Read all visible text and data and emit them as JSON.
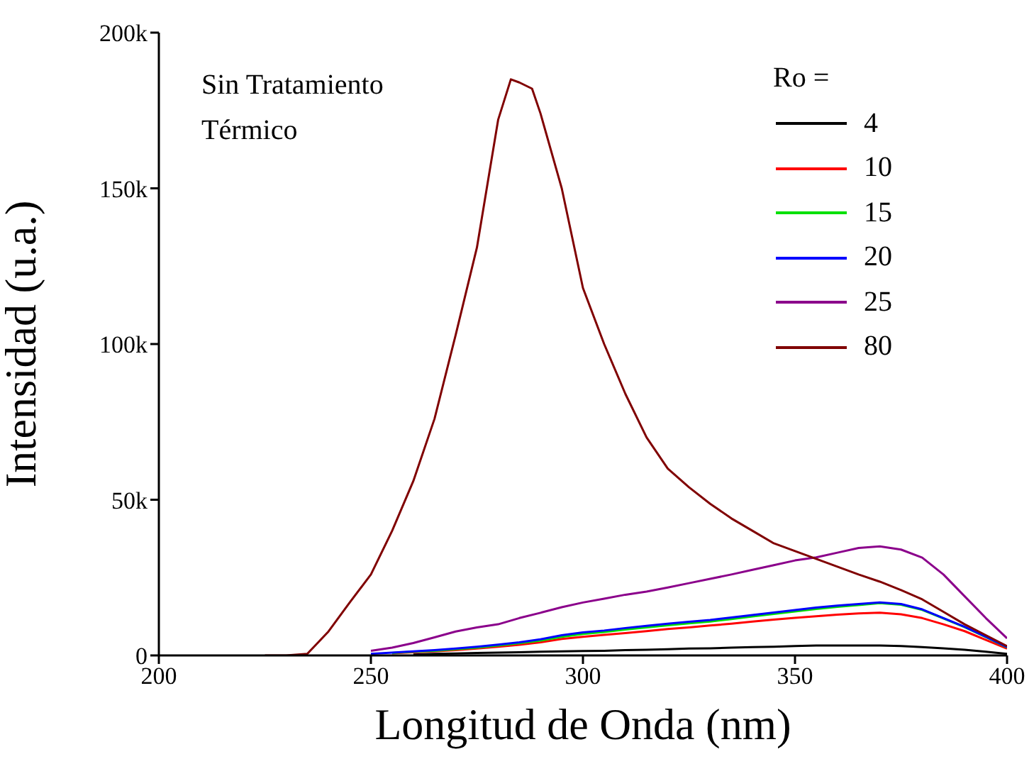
{
  "chart_data": {
    "type": "line",
    "xlabel": "Longitud de Onda (nm)",
    "ylabel": "Intensidad (u.a.)",
    "legend_title": "Ro =",
    "legend": "top right",
    "annotations": [
      "Sin Tratamiento Térmico"
    ],
    "xlim": [
      200,
      400
    ],
    "xticks": [
      200,
      250,
      300,
      350,
      400
    ],
    "ylim": [
      0,
      200000
    ],
    "yticks": [
      {
        "value": 0,
        "label": "0"
      },
      {
        "value": 50000,
        "label": "50k"
      },
      {
        "value": 100000,
        "label": "100k"
      },
      {
        "value": 150000,
        "label": "150k"
      },
      {
        "value": 200000,
        "label": "200k"
      }
    ],
    "x": [
      250,
      255,
      260,
      265,
      270,
      275,
      280,
      285,
      290,
      295,
      300,
      305,
      310,
      315,
      320,
      325,
      330,
      335,
      340,
      345,
      350,
      355,
      360,
      365,
      370,
      375,
      380,
      385,
      390,
      395,
      400
    ],
    "series": [
      {
        "name": "4",
        "color": "#000000",
        "values": [
          null,
          null,
          300,
          500,
          600,
          800,
          900,
          1000,
          1200,
          1300,
          1400,
          1500,
          1700,
          1800,
          2000,
          2200,
          2300,
          2500,
          2700,
          2800,
          3000,
          3200,
          3200,
          3200,
          3200,
          3000,
          2700,
          2300,
          1800,
          1200,
          500
        ]
      },
      {
        "name": "10",
        "color": "#ff0000",
        "values": [
          null,
          700,
          1000,
          1300,
          1700,
          2200,
          2800,
          3400,
          4200,
          5300,
          6000,
          6600,
          7200,
          7800,
          8500,
          9000,
          9600,
          10200,
          10900,
          11500,
          12100,
          12600,
          13100,
          13500,
          13700,
          13200,
          12000,
          10000,
          7800,
          5000,
          2200
        ]
      },
      {
        "name": "15",
        "color": "#00e000",
        "values": [
          null,
          800,
          1200,
          1500,
          2000,
          2500,
          3200,
          3900,
          4800,
          6000,
          6900,
          7500,
          8300,
          9000,
          9700,
          10300,
          10900,
          11700,
          12500,
          13300,
          14100,
          14900,
          15600,
          16200,
          16800,
          16300,
          14600,
          11900,
          9100,
          5900,
          2600
        ]
      },
      {
        "name": "20",
        "color": "#0000ff",
        "values": [
          500,
          900,
          1300,
          1700,
          2200,
          2800,
          3500,
          4200,
          5200,
          6500,
          7400,
          8000,
          8800,
          9500,
          10200,
          10800,
          11400,
          12200,
          13000,
          13800,
          14600,
          15400,
          16000,
          16500,
          17000,
          16500,
          14800,
          12000,
          9200,
          6000,
          2700
        ]
      },
      {
        "name": "25",
        "color": "#8b008b",
        "values": [
          1500,
          2500,
          4000,
          5800,
          7700,
          9000,
          10000,
          12000,
          13700,
          15500,
          17000,
          18200,
          19500,
          20500,
          21800,
          23200,
          24600,
          26000,
          27500,
          29000,
          30500,
          31500,
          33000,
          34500,
          35000,
          34000,
          31400,
          26000,
          19000,
          12000,
          5500
        ]
      },
      {
        "name": "80",
        "color": "#800000",
        "x": [
          225,
          230,
          235,
          240,
          245,
          250,
          255,
          260,
          265,
          270,
          275,
          280,
          283,
          285,
          288,
          290,
          295,
          300,
          305,
          310,
          315,
          320,
          325,
          330,
          335,
          340,
          345,
          350,
          355,
          360,
          365,
          370,
          375,
          380,
          385,
          390,
          395,
          400
        ],
        "values": [
          0,
          0,
          500,
          7700,
          17000,
          26000,
          40000,
          56000,
          76000,
          103000,
          131000,
          172000,
          185000,
          184000,
          182000,
          174000,
          150000,
          118000,
          100000,
          84000,
          70000,
          60000,
          54000,
          48700,
          44000,
          40000,
          36000,
          33500,
          31000,
          28500,
          26000,
          23700,
          21000,
          18000,
          14000,
          10000,
          6500,
          3000
        ]
      }
    ]
  }
}
